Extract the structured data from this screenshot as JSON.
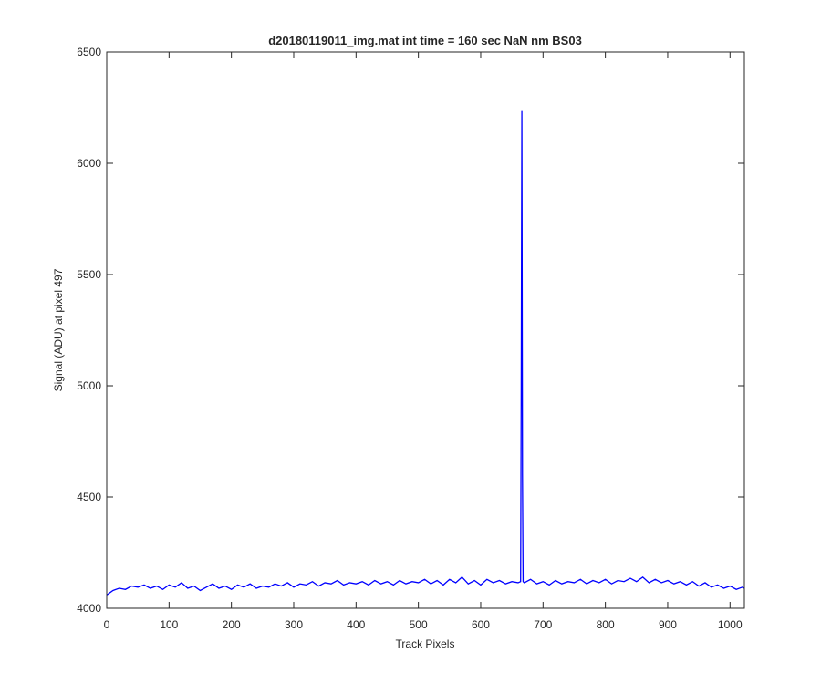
{
  "chart_data": {
    "type": "line",
    "title": "d20180119011_img.mat int time = 160 sec  NaN nm BS03",
    "x_label": "Track Pixels",
    "y_label": "Signal (ADU) at pixel 497",
    "x": [
      0,
      5,
      10,
      20,
      30,
      40,
      50,
      60,
      70,
      80,
      90,
      100,
      110,
      120,
      130,
      140,
      150,
      160,
      170,
      180,
      190,
      200,
      210,
      220,
      230,
      240,
      250,
      260,
      270,
      280,
      290,
      300,
      310,
      320,
      330,
      340,
      350,
      360,
      370,
      380,
      390,
      400,
      410,
      420,
      430,
      440,
      450,
      460,
      470,
      480,
      490,
      500,
      510,
      520,
      530,
      540,
      550,
      560,
      570,
      580,
      590,
      600,
      610,
      620,
      630,
      640,
      650,
      660,
      664,
      665,
      666,
      667,
      668,
      670,
      680,
      690,
      700,
      710,
      720,
      730,
      740,
      750,
      760,
      770,
      780,
      790,
      800,
      810,
      820,
      830,
      840,
      850,
      860,
      870,
      880,
      890,
      900,
      910,
      920,
      930,
      940,
      950,
      960,
      970,
      980,
      990,
      1000,
      1010,
      1020,
      1023
    ],
    "series": [
      {
        "name": "signal",
        "color": "#0000ff",
        "values": [
          4060,
          4070,
          4080,
          4090,
          4085,
          4100,
          4095,
          4105,
          4090,
          4100,
          4085,
          4105,
          4095,
          4115,
          4090,
          4100,
          4080,
          4095,
          4110,
          4090,
          4100,
          4085,
          4105,
          4095,
          4110,
          4090,
          4100,
          4095,
          4110,
          4100,
          4115,
          4095,
          4110,
          4105,
          4120,
          4100,
          4115,
          4110,
          4125,
          4105,
          4115,
          4110,
          4120,
          4105,
          4125,
          4110,
          4120,
          4105,
          4125,
          4110,
          4120,
          4115,
          4130,
          4110,
          4125,
          4105,
          4130,
          4115,
          4140,
          4110,
          4125,
          4105,
          4130,
          4115,
          4125,
          4110,
          4120,
          4115,
          4120,
          5000,
          6235,
          4600,
          4120,
          4115,
          4130,
          4110,
          4120,
          4105,
          4125,
          4110,
          4120,
          4115,
          4130,
          4110,
          4125,
          4115,
          4130,
          4110,
          4125,
          4120,
          4135,
          4120,
          4140,
          4115,
          4130,
          4115,
          4125,
          4110,
          4120,
          4105,
          4120,
          4100,
          4115,
          4095,
          4105,
          4090,
          4100,
          4085,
          4095,
          4090
        ]
      }
    ],
    "xlim": [
      0,
      1023
    ],
    "ylim": [
      4000,
      6500
    ],
    "xticks": [
      0,
      100,
      200,
      300,
      400,
      500,
      600,
      700,
      800,
      900,
      1000
    ],
    "yticks": [
      4000,
      4500,
      5000,
      5500,
      6000,
      6500
    ]
  }
}
